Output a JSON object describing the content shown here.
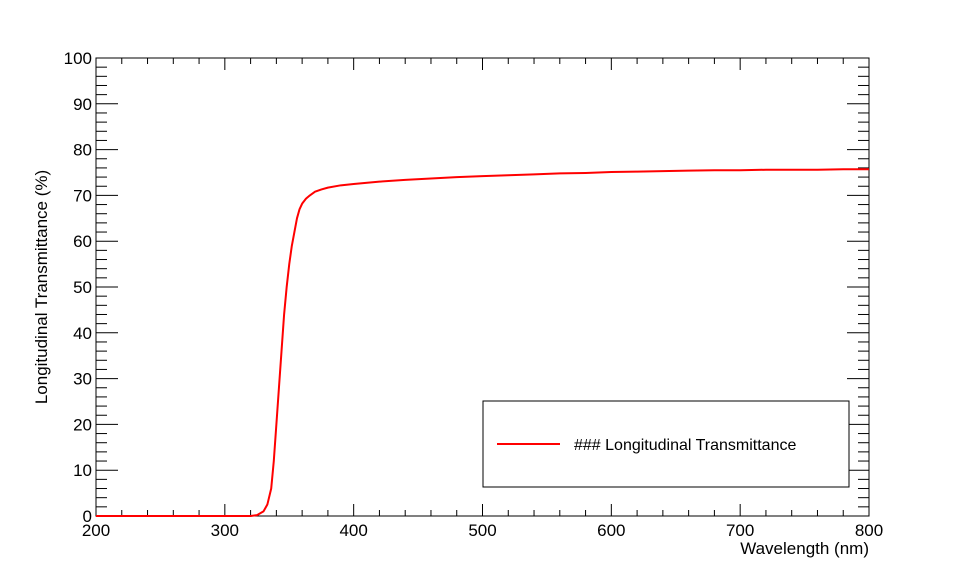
{
  "chart_data": {
    "type": "line",
    "title": "",
    "xlabel": "Wavelength (nm)",
    "ylabel": "Longitudinal Transmittance (%)",
    "xlim": [
      200,
      800
    ],
    "ylim": [
      0,
      100
    ],
    "x_ticks": [
      200,
      300,
      400,
      500,
      600,
      700,
      800
    ],
    "y_ticks": [
      0,
      10,
      20,
      30,
      40,
      50,
      60,
      70,
      80,
      90,
      100
    ],
    "x_tick_labels": [
      "200",
      "300",
      "400",
      "500",
      "600",
      "700",
      "800"
    ],
    "y_tick_labels": [
      "0",
      "10",
      "20",
      "30",
      "40",
      "50",
      "60",
      "70",
      "80",
      "90",
      "100"
    ],
    "grid": false,
    "legend_position": "bottom-right",
    "series": [
      {
        "name": "### Longitudinal Transmittance",
        "color": "#ff0000",
        "points": [
          [
            200,
            0
          ],
          [
            250,
            0
          ],
          [
            300,
            0
          ],
          [
            320,
            0
          ],
          [
            325,
            0.2
          ],
          [
            330,
            1
          ],
          [
            333,
            2.5
          ],
          [
            336,
            6
          ],
          [
            338,
            12
          ],
          [
            340,
            20
          ],
          [
            342,
            28
          ],
          [
            344,
            36
          ],
          [
            346,
            44
          ],
          [
            348,
            50
          ],
          [
            350,
            55
          ],
          [
            352,
            59
          ],
          [
            354,
            62
          ],
          [
            356,
            65
          ],
          [
            358,
            67
          ],
          [
            360,
            68.2
          ],
          [
            363,
            69.3
          ],
          [
            366,
            70
          ],
          [
            370,
            70.8
          ],
          [
            375,
            71.3
          ],
          [
            380,
            71.7
          ],
          [
            390,
            72.2
          ],
          [
            400,
            72.5
          ],
          [
            420,
            73
          ],
          [
            440,
            73.4
          ],
          [
            460,
            73.7
          ],
          [
            480,
            74
          ],
          [
            500,
            74.2
          ],
          [
            520,
            74.4
          ],
          [
            540,
            74.6
          ],
          [
            560,
            74.8
          ],
          [
            580,
            74.9
          ],
          [
            600,
            75.1
          ],
          [
            620,
            75.2
          ],
          [
            640,
            75.3
          ],
          [
            660,
            75.4
          ],
          [
            680,
            75.5
          ],
          [
            700,
            75.5
          ],
          [
            720,
            75.6
          ],
          [
            740,
            75.6
          ],
          [
            760,
            75.6
          ],
          [
            780,
            75.7
          ],
          [
            800,
            75.7
          ]
        ]
      }
    ]
  },
  "colors": {
    "series_line": "#ff0000",
    "axis": "#000000",
    "background": "#ffffff"
  }
}
